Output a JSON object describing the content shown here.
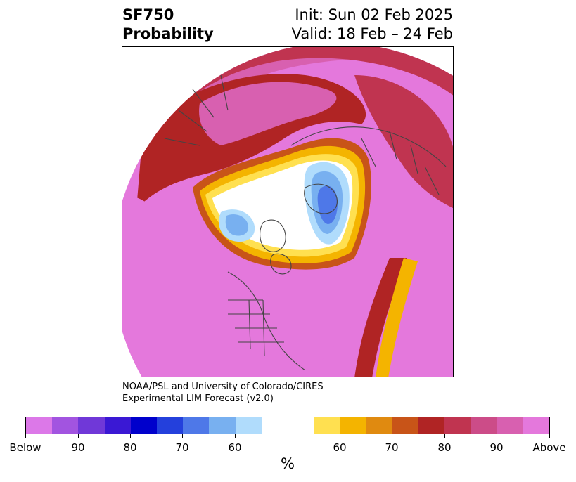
{
  "header": {
    "title_line1": "SF750",
    "title_line2": "Probability",
    "init_line": "Init: Sun 02 Feb 2025",
    "valid_line": "Valid: 18 Feb – 24 Feb"
  },
  "credit": {
    "line1": "NOAA/PSL and University of Colorado/CIRES",
    "line2": "Experimental LIM Forecast (v2.0)"
  },
  "colorbar": {
    "colors": [
      "#dc78e8",
      "#a254e0",
      "#7038d8",
      "#3a18d4",
      "#0000cc",
      "#2440dc",
      "#4e78e8",
      "#78b0f0",
      "#b0dcfc",
      "#ffffff",
      "#ffe050",
      "#f4b400",
      "#e08a10",
      "#c85418",
      "#b02424",
      "#c03450",
      "#cc4c88",
      "#d860b0",
      "#e478dc"
    ],
    "ticks": [
      "Below",
      "90",
      "80",
      "70",
      "60",
      "60",
      "70",
      "80",
      "90",
      "Above"
    ],
    "unit": "%"
  },
  "map": {
    "palette": {
      "above": "#e478dc",
      "p90": "#d860b0",
      "p80": "#c03450",
      "p75": "#b02424",
      "p70": "#c85418",
      "p65": "#e08a10",
      "p60": "#f4b400",
      "p55": "#ffe050",
      "neutral": "#ffffff",
      "b60": "#b0dcfc",
      "b70": "#78b0f0",
      "b80": "#4e78e8",
      "coast": "#444444"
    }
  }
}
